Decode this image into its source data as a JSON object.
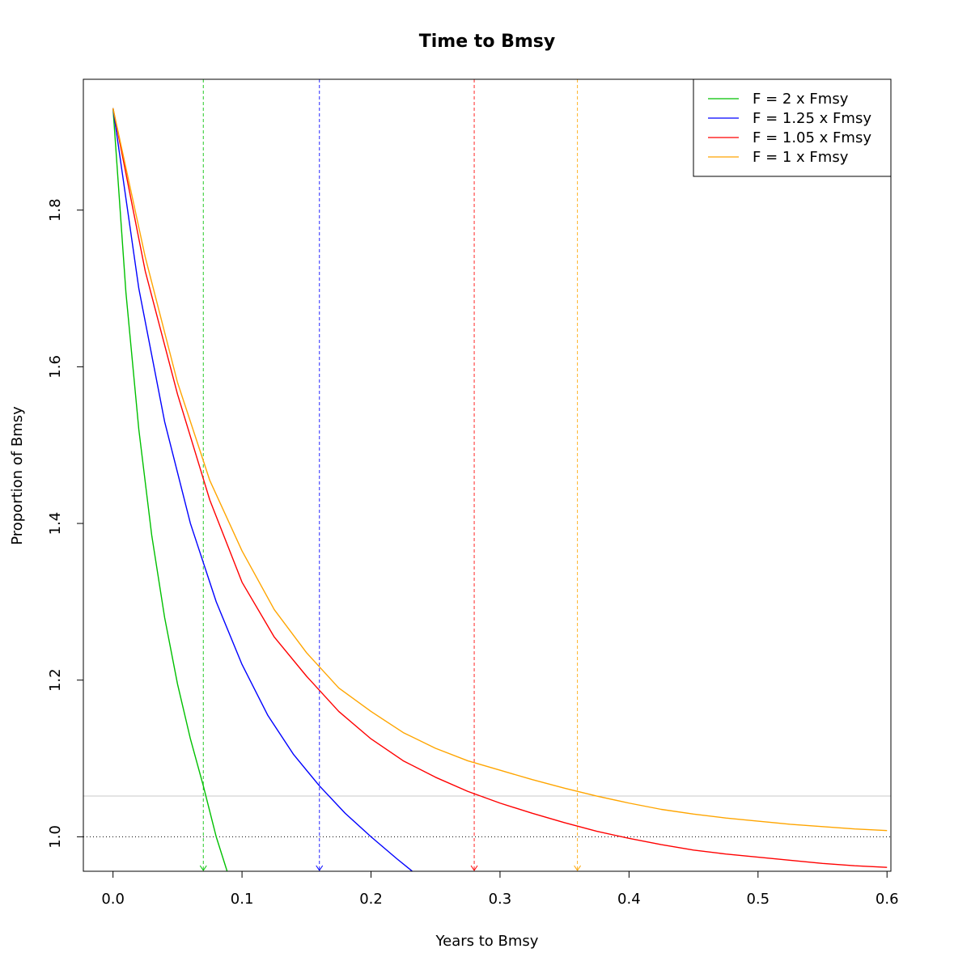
{
  "chart_data": {
    "type": "line",
    "title": "Time to Bmsy",
    "xlabel": "Years to Bmsy",
    "ylabel": "Proportion of Bmsy",
    "xlim": [
      -0.023,
      0.603
    ],
    "ylim": [
      0.956,
      1.967
    ],
    "x_ticks": [
      0.0,
      0.1,
      0.2,
      0.3,
      0.4,
      0.5,
      0.6
    ],
    "x_tick_labels": [
      "0.0",
      "0.1",
      "0.2",
      "0.3",
      "0.4",
      "0.5",
      "0.6"
    ],
    "y_ticks": [
      1.0,
      1.2,
      1.4,
      1.6,
      1.8
    ],
    "y_tick_labels": [
      "1.0",
      "1.2",
      "1.4",
      "1.6",
      "1.8"
    ],
    "grid": false,
    "legend_position": "top-right",
    "series": [
      {
        "name": "F = 2 x Fmsy",
        "color": "#00c000",
        "x": [
          0.0,
          0.01,
          0.02,
          0.03,
          0.04,
          0.05,
          0.06,
          0.07,
          0.08,
          0.09
        ],
        "y": [
          1.93,
          1.695,
          1.52,
          1.385,
          1.28,
          1.195,
          1.125,
          1.065,
          1.0,
          0.948
        ],
        "marker_x": 0.07
      },
      {
        "name": "F = 1.25 x Fmsy",
        "color": "#0000ff",
        "x": [
          0.0,
          0.02,
          0.04,
          0.06,
          0.08,
          0.1,
          0.12,
          0.14,
          0.16,
          0.18,
          0.2,
          0.22,
          0.232
        ],
        "y": [
          1.93,
          1.7,
          1.53,
          1.4,
          1.3,
          1.22,
          1.155,
          1.105,
          1.065,
          1.03,
          1.0,
          0.972,
          0.956
        ],
        "marker_x": 0.16
      },
      {
        "name": "F = 1.05 x Fmsy",
        "color": "#ff0000",
        "x": [
          0.0,
          0.025,
          0.05,
          0.075,
          0.1,
          0.125,
          0.15,
          0.175,
          0.2,
          0.225,
          0.25,
          0.275,
          0.3,
          0.325,
          0.35,
          0.375,
          0.4,
          0.425,
          0.45,
          0.475,
          0.5,
          0.525,
          0.55,
          0.575,
          0.6
        ],
        "y": [
          1.93,
          1.722,
          1.565,
          1.43,
          1.325,
          1.255,
          1.205,
          1.16,
          1.125,
          1.097,
          1.076,
          1.058,
          1.043,
          1.03,
          1.018,
          1.007,
          0.998,
          0.99,
          0.983,
          0.978,
          0.974,
          0.97,
          0.966,
          0.963,
          0.961
        ],
        "marker_x": 0.28
      },
      {
        "name": "F = 1 x Fmsy",
        "color": "#ffa500",
        "x": [
          0.0,
          0.025,
          0.05,
          0.075,
          0.1,
          0.125,
          0.15,
          0.175,
          0.2,
          0.225,
          0.25,
          0.275,
          0.3,
          0.325,
          0.35,
          0.375,
          0.4,
          0.425,
          0.45,
          0.475,
          0.5,
          0.525,
          0.55,
          0.575,
          0.6
        ],
        "y": [
          1.93,
          1.74,
          1.58,
          1.455,
          1.365,
          1.29,
          1.235,
          1.19,
          1.16,
          1.133,
          1.113,
          1.097,
          1.085,
          1.073,
          1.062,
          1.052,
          1.043,
          1.035,
          1.029,
          1.024,
          1.02,
          1.016,
          1.013,
          1.01,
          1.008
        ],
        "marker_x": 0.36
      }
    ],
    "reference_lines": [
      {
        "axis": "y",
        "value": 1.0,
        "style": "dotted",
        "color": "#000000"
      },
      {
        "axis": "y",
        "value": 1.052,
        "style": "solid",
        "color": "#c8c8c8"
      }
    ]
  }
}
